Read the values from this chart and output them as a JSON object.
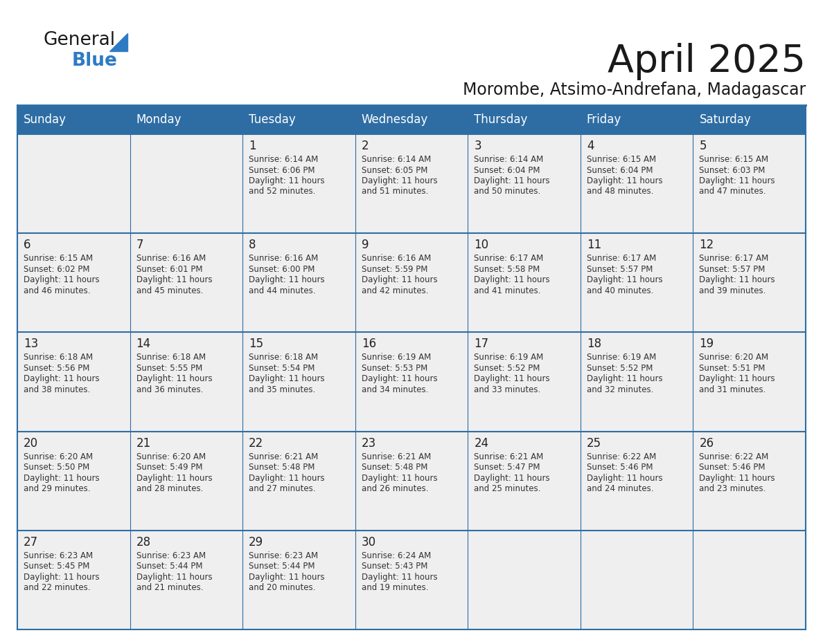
{
  "title": "April 2025",
  "subtitle": "Morombe, Atsimo-Andrefana, Madagascar",
  "header_bg": "#2e6da4",
  "header_text": "#ffffff",
  "cell_bg": "#efefef",
  "day_number_color": "#222222",
  "cell_text_color": "#333333",
  "border_color": "#2e6da4",
  "row_separator_color": "#2e6da4",
  "days_of_week": [
    "Sunday",
    "Monday",
    "Tuesday",
    "Wednesday",
    "Thursday",
    "Friday",
    "Saturday"
  ],
  "weeks": [
    [
      {
        "day": null,
        "sunrise": null,
        "sunset": null,
        "daylight": null
      },
      {
        "day": null,
        "sunrise": null,
        "sunset": null,
        "daylight": null
      },
      {
        "day": 1,
        "sunrise": "6:14 AM",
        "sunset": "6:06 PM",
        "daylight": "11 hours and 52 minutes."
      },
      {
        "day": 2,
        "sunrise": "6:14 AM",
        "sunset": "6:05 PM",
        "daylight": "11 hours and 51 minutes."
      },
      {
        "day": 3,
        "sunrise": "6:14 AM",
        "sunset": "6:04 PM",
        "daylight": "11 hours and 50 minutes."
      },
      {
        "day": 4,
        "sunrise": "6:15 AM",
        "sunset": "6:04 PM",
        "daylight": "11 hours and 48 minutes."
      },
      {
        "day": 5,
        "sunrise": "6:15 AM",
        "sunset": "6:03 PM",
        "daylight": "11 hours and 47 minutes."
      }
    ],
    [
      {
        "day": 6,
        "sunrise": "6:15 AM",
        "sunset": "6:02 PM",
        "daylight": "11 hours and 46 minutes."
      },
      {
        "day": 7,
        "sunrise": "6:16 AM",
        "sunset": "6:01 PM",
        "daylight": "11 hours and 45 minutes."
      },
      {
        "day": 8,
        "sunrise": "6:16 AM",
        "sunset": "6:00 PM",
        "daylight": "11 hours and 44 minutes."
      },
      {
        "day": 9,
        "sunrise": "6:16 AM",
        "sunset": "5:59 PM",
        "daylight": "11 hours and 42 minutes."
      },
      {
        "day": 10,
        "sunrise": "6:17 AM",
        "sunset": "5:58 PM",
        "daylight": "11 hours and 41 minutes."
      },
      {
        "day": 11,
        "sunrise": "6:17 AM",
        "sunset": "5:57 PM",
        "daylight": "11 hours and 40 minutes."
      },
      {
        "day": 12,
        "sunrise": "6:17 AM",
        "sunset": "5:57 PM",
        "daylight": "11 hours and 39 minutes."
      }
    ],
    [
      {
        "day": 13,
        "sunrise": "6:18 AM",
        "sunset": "5:56 PM",
        "daylight": "11 hours and 38 minutes."
      },
      {
        "day": 14,
        "sunrise": "6:18 AM",
        "sunset": "5:55 PM",
        "daylight": "11 hours and 36 minutes."
      },
      {
        "day": 15,
        "sunrise": "6:18 AM",
        "sunset": "5:54 PM",
        "daylight": "11 hours and 35 minutes."
      },
      {
        "day": 16,
        "sunrise": "6:19 AM",
        "sunset": "5:53 PM",
        "daylight": "11 hours and 34 minutes."
      },
      {
        "day": 17,
        "sunrise": "6:19 AM",
        "sunset": "5:52 PM",
        "daylight": "11 hours and 33 minutes."
      },
      {
        "day": 18,
        "sunrise": "6:19 AM",
        "sunset": "5:52 PM",
        "daylight": "11 hours and 32 minutes."
      },
      {
        "day": 19,
        "sunrise": "6:20 AM",
        "sunset": "5:51 PM",
        "daylight": "11 hours and 31 minutes."
      }
    ],
    [
      {
        "day": 20,
        "sunrise": "6:20 AM",
        "sunset": "5:50 PM",
        "daylight": "11 hours and 29 minutes."
      },
      {
        "day": 21,
        "sunrise": "6:20 AM",
        "sunset": "5:49 PM",
        "daylight": "11 hours and 28 minutes."
      },
      {
        "day": 22,
        "sunrise": "6:21 AM",
        "sunset": "5:48 PM",
        "daylight": "11 hours and 27 minutes."
      },
      {
        "day": 23,
        "sunrise": "6:21 AM",
        "sunset": "5:48 PM",
        "daylight": "11 hours and 26 minutes."
      },
      {
        "day": 24,
        "sunrise": "6:21 AM",
        "sunset": "5:47 PM",
        "daylight": "11 hours and 25 minutes."
      },
      {
        "day": 25,
        "sunrise": "6:22 AM",
        "sunset": "5:46 PM",
        "daylight": "11 hours and 24 minutes."
      },
      {
        "day": 26,
        "sunrise": "6:22 AM",
        "sunset": "5:46 PM",
        "daylight": "11 hours and 23 minutes."
      }
    ],
    [
      {
        "day": 27,
        "sunrise": "6:23 AM",
        "sunset": "5:45 PM",
        "daylight": "11 hours and 22 minutes."
      },
      {
        "day": 28,
        "sunrise": "6:23 AM",
        "sunset": "5:44 PM",
        "daylight": "11 hours and 21 minutes."
      },
      {
        "day": 29,
        "sunrise": "6:23 AM",
        "sunset": "5:44 PM",
        "daylight": "11 hours and 20 minutes."
      },
      {
        "day": 30,
        "sunrise": "6:24 AM",
        "sunset": "5:43 PM",
        "daylight": "11 hours and 19 minutes."
      },
      {
        "day": null,
        "sunrise": null,
        "sunset": null,
        "daylight": null
      },
      {
        "day": null,
        "sunrise": null,
        "sunset": null,
        "daylight": null
      },
      {
        "day": null,
        "sunrise": null,
        "sunset": null,
        "daylight": null
      }
    ]
  ],
  "logo_text1": "General",
  "logo_text2": "Blue",
  "logo_color1": "#1a1a1a",
  "logo_color2": "#2e7bc4",
  "logo_triangle_color": "#2e7bc4",
  "title_fontsize": 40,
  "subtitle_fontsize": 17,
  "header_fontsize": 12,
  "day_num_fontsize": 12,
  "cell_fontsize": 8.5
}
